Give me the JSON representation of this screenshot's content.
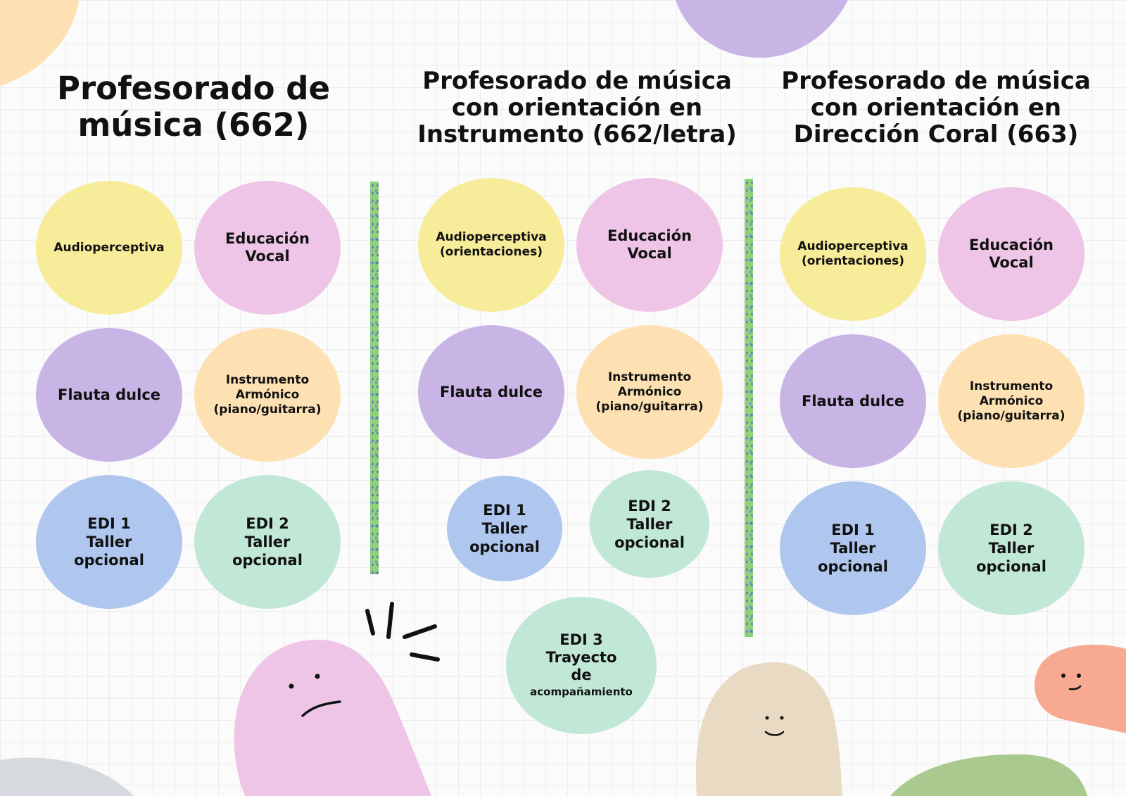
{
  "columns": [
    {
      "title_lines": [
        "Profesorado de",
        "música (662)"
      ],
      "subjects": [
        "Audioperceptiva",
        "Educación Vocal",
        "Flauta dulce",
        "Instrumento Armónico (piano/guitarra)",
        "EDI 1 Taller opcional",
        "EDI 2 Taller opcional"
      ]
    },
    {
      "title_lines": [
        "Profesorado de música",
        "con orientación en",
        "Instrumento (662/letra)"
      ],
      "subjects": [
        "Audioperceptiva (orientaciones)",
        "Educación Vocal",
        "Flauta dulce",
        "Instrumento Armónico (piano/guitarra)",
        "EDI 1 Taller opcional",
        "EDI 2 Taller opcional",
        "EDI 3 Trayecto de acompañamiento"
      ]
    },
    {
      "title_lines": [
        "Profesorado de música",
        "con orientación en",
        "Dirección Coral (663)"
      ],
      "subjects": [
        "Audioperceptiva (orientaciones)",
        "Educación Vocal",
        "Flauta dulce",
        "Instrumento Armónico (piano/guitarra)",
        "EDI 1 Taller opcional",
        "EDI 2 Taller opcional"
      ]
    }
  ],
  "colors": {
    "audioperceptiva": "#f7ec99",
    "educacion_vocal": "#eec5e7",
    "flauta_dulce": "#c8b5e6",
    "instrumento": "#fde1b3",
    "edi1": "#afc7ee",
    "edi2": "#c1e7d6",
    "divider": "#8fd07a"
  },
  "labels": {
    "audio": "Audioperceptiva",
    "audio_or": [
      "Audioperceptiva",
      "(orientaciones)"
    ],
    "vocal": [
      "Educación",
      "Vocal"
    ],
    "flauta": "Flauta dulce",
    "instr": [
      "Instrumento",
      "Armónico",
      "(piano/guitarra)"
    ],
    "edi1": [
      "EDI 1",
      "Taller",
      "opcional"
    ],
    "edi2": [
      "EDI 2",
      "Taller",
      "opcional"
    ],
    "edi3": [
      "EDI 3",
      "Trayecto",
      "de",
      "acompañamiento"
    ]
  },
  "decorations": [
    "frowning-pink-blob",
    "smiling-beige-blob",
    "smiling-coral-blob",
    "purple-blob",
    "peach-blob",
    "green-blob",
    "gray-blob"
  ]
}
